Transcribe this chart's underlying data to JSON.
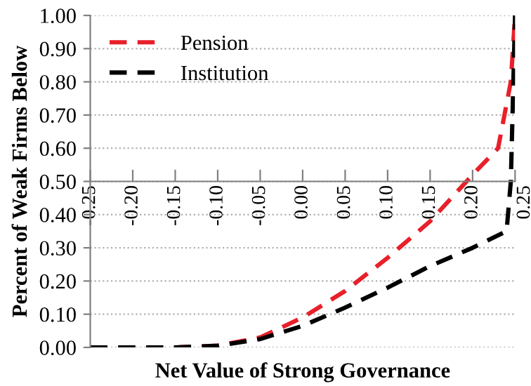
{
  "chart_data": {
    "type": "line",
    "xlabel": "Net Value of Strong Governance",
    "ylabel": "Percent of Weak Firms Below",
    "series": [
      {
        "name": "Pension",
        "color": "#e8202a",
        "x": [
          -0.25,
          -0.15,
          -0.1,
          -0.05,
          0.0,
          0.05,
          0.1,
          0.15,
          0.2,
          0.23,
          0.245,
          0.25
        ],
        "values": [
          0,
          0,
          0.005,
          0.03,
          0.09,
          0.17,
          0.27,
          0.38,
          0.52,
          0.6,
          0.8,
          1.0
        ]
      },
      {
        "name": "Institution",
        "color": "#000000",
        "x": [
          -0.25,
          -0.15,
          -0.1,
          -0.05,
          0.0,
          0.05,
          0.1,
          0.15,
          0.2,
          0.24,
          0.245,
          0.25
        ],
        "values": [
          0,
          0,
          0.005,
          0.025,
          0.065,
          0.12,
          0.18,
          0.245,
          0.3,
          0.35,
          0.5,
          1.0
        ]
      }
    ],
    "line_style": "dashed",
    "marker": "none",
    "legend": "top left",
    "grid": "y",
    "xlim": [
      -0.25,
      0.25
    ],
    "ylim": [
      0,
      1
    ],
    "xticks": [
      {
        "value": -0.25,
        "label": "-0.25"
      },
      {
        "value": -0.2,
        "label": "-0.20"
      },
      {
        "value": -0.15,
        "label": "-0.15"
      },
      {
        "value": -0.1,
        "label": "-0.10"
      },
      {
        "value": -0.05,
        "label": "-0.05"
      },
      {
        "value": 0,
        "label": "0.00"
      },
      {
        "value": 0.05,
        "label": "0.05"
      },
      {
        "value": 0.1,
        "label": "0.10"
      },
      {
        "value": 0.15,
        "label": "0.15"
      },
      {
        "value": 0.2,
        "label": "0.20"
      },
      {
        "value": 0.25,
        "label": "0.25"
      }
    ],
    "yticks": [
      {
        "value": 0,
        "label": "0.00"
      },
      {
        "value": 0.1,
        "label": "0.10"
      },
      {
        "value": 0.2,
        "label": "0.20"
      },
      {
        "value": 0.3,
        "label": "0.30"
      },
      {
        "value": 0.4,
        "label": "0.40"
      },
      {
        "value": 0.5,
        "label": "0.50"
      },
      {
        "value": 0.6,
        "label": "0.60"
      },
      {
        "value": 0.7,
        "label": "0.70"
      },
      {
        "value": 0.8,
        "label": "0.80"
      },
      {
        "value": 0.9,
        "label": "0.90"
      },
      {
        "value": 1,
        "label": "1.00"
      }
    ]
  }
}
